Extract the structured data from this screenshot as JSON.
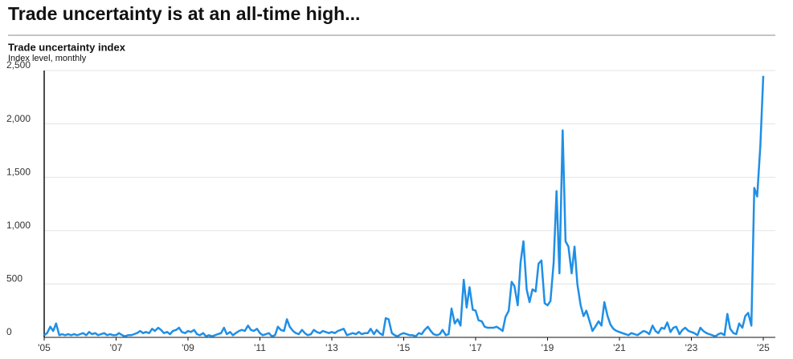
{
  "chart_data": {
    "type": "line",
    "title": "Trade uncertainty is at an all-time high...",
    "subtitle": "Trade uncertainty index",
    "y_label": "Index level, monthly",
    "xlim": [
      2005,
      2025
    ],
    "xticks": [
      {
        "value": 2005,
        "label": "'05"
      },
      {
        "value": 2007,
        "label": "'07"
      },
      {
        "value": 2009,
        "label": "'09"
      },
      {
        "value": 2011,
        "label": "'11"
      },
      {
        "value": 2013,
        "label": "'13"
      },
      {
        "value": 2015,
        "label": "'15"
      },
      {
        "value": 2017,
        "label": "'17"
      },
      {
        "value": 2019,
        "label": "'19"
      },
      {
        "value": 2021,
        "label": "'21"
      },
      {
        "value": 2023,
        "label": "'23"
      },
      {
        "value": 2025,
        "label": "'25"
      }
    ],
    "ylim": [
      0,
      2500
    ],
    "yticks": [
      0,
      500,
      {
        "value": 1000,
        "label": "1,000"
      },
      {
        "value": 1500,
        "label": "1,500"
      },
      {
        "value": 2000,
        "label": "2,000"
      },
      {
        "value": 2500,
        "label": "2,500"
      }
    ],
    "grid": true,
    "series": [
      {
        "name": "Trade uncertainty index",
        "color": "#1f8fe6",
        "x": [
          2005,
          2005.08,
          2005.17,
          2005.25,
          2005.33,
          2005.42,
          2005.5,
          2005.58,
          2005.67,
          2005.75,
          2005.83,
          2005.92,
          2006,
          2006.08,
          2006.17,
          2006.25,
          2006.33,
          2006.42,
          2006.5,
          2006.58,
          2006.67,
          2006.75,
          2006.83,
          2006.92,
          2007,
          2007.08,
          2007.17,
          2007.25,
          2007.33,
          2007.42,
          2007.5,
          2007.58,
          2007.67,
          2007.75,
          2007.83,
          2007.92,
          2008,
          2008.08,
          2008.17,
          2008.25,
          2008.33,
          2008.42,
          2008.5,
          2008.58,
          2008.67,
          2008.75,
          2008.83,
          2008.92,
          2009,
          2009.08,
          2009.17,
          2009.25,
          2009.33,
          2009.42,
          2009.5,
          2009.58,
          2009.67,
          2009.75,
          2009.83,
          2009.92,
          2010,
          2010.08,
          2010.17,
          2010.25,
          2010.33,
          2010.42,
          2010.5,
          2010.58,
          2010.67,
          2010.75,
          2010.83,
          2010.92,
          2011,
          2011.08,
          2011.17,
          2011.25,
          2011.33,
          2011.42,
          2011.5,
          2011.58,
          2011.67,
          2011.75,
          2011.83,
          2011.92,
          2012,
          2012.08,
          2012.17,
          2012.25,
          2012.33,
          2012.42,
          2012.5,
          2012.58,
          2012.67,
          2012.75,
          2012.83,
          2012.92,
          2013,
          2013.08,
          2013.17,
          2013.25,
          2013.33,
          2013.42,
          2013.5,
          2013.58,
          2013.67,
          2013.75,
          2013.83,
          2013.92,
          2014,
          2014.08,
          2014.17,
          2014.25,
          2014.33,
          2014.42,
          2014.5,
          2014.58,
          2014.67,
          2014.75,
          2014.83,
          2014.92,
          2015,
          2015.08,
          2015.17,
          2015.25,
          2015.33,
          2015.42,
          2015.5,
          2015.58,
          2015.67,
          2015.75,
          2015.83,
          2015.92,
          2016,
          2016.08,
          2016.17,
          2016.25,
          2016.33,
          2016.42,
          2016.5,
          2016.58,
          2016.67,
          2016.75,
          2016.83,
          2016.92,
          2017,
          2017.08,
          2017.17,
          2017.25,
          2017.33,
          2017.42,
          2017.5,
          2017.58,
          2017.67,
          2017.75,
          2017.83,
          2017.92,
          2018,
          2018.08,
          2018.17,
          2018.25,
          2018.33,
          2018.42,
          2018.5,
          2018.58,
          2018.67,
          2018.75,
          2018.83,
          2018.92,
          2019,
          2019.08,
          2019.17,
          2019.25,
          2019.33,
          2019.42,
          2019.5,
          2019.58,
          2019.67,
          2019.75,
          2019.83,
          2019.92,
          2020,
          2020.08,
          2020.17,
          2020.25,
          2020.33,
          2020.42,
          2020.5,
          2020.58,
          2020.67,
          2020.75,
          2020.83,
          2020.92,
          2021,
          2021.08,
          2021.17,
          2021.25,
          2021.33,
          2021.42,
          2021.5,
          2021.58,
          2021.67,
          2021.75,
          2021.83,
          2021.92,
          2022,
          2022.08,
          2022.17,
          2022.25,
          2022.33,
          2022.42,
          2022.5,
          2022.58,
          2022.67,
          2022.75,
          2022.83,
          2022.92,
          2023,
          2023.08,
          2023.17,
          2023.25,
          2023.33,
          2023.42,
          2023.5,
          2023.58,
          2023.67,
          2023.75,
          2023.83,
          2023.92,
          2024,
          2024.08,
          2024.17,
          2024.25,
          2024.33,
          2024.42,
          2024.5,
          2024.58,
          2024.67,
          2024.75,
          2024.83,
          2024.92,
          2025
        ],
        "values": [
          20,
          40,
          100,
          60,
          130,
          20,
          30,
          20,
          30,
          20,
          30,
          20,
          30,
          40,
          20,
          50,
          30,
          40,
          20,
          30,
          40,
          20,
          30,
          20,
          20,
          40,
          20,
          10,
          20,
          20,
          30,
          40,
          60,
          40,
          50,
          40,
          80,
          60,
          90,
          70,
          40,
          50,
          30,
          60,
          70,
          90,
          50,
          40,
          60,
          50,
          70,
          30,
          20,
          40,
          10,
          20,
          10,
          20,
          30,
          40,
          90,
          30,
          50,
          20,
          40,
          60,
          70,
          60,
          110,
          70,
          60,
          80,
          40,
          20,
          30,
          40,
          10,
          20,
          100,
          70,
          60,
          170,
          100,
          60,
          40,
          30,
          70,
          40,
          20,
          30,
          70,
          50,
          40,
          60,
          50,
          40,
          50,
          40,
          60,
          70,
          80,
          20,
          30,
          40,
          30,
          50,
          30,
          40,
          40,
          80,
          30,
          70,
          40,
          20,
          180,
          170,
          40,
          20,
          10,
          30,
          40,
          30,
          20,
          20,
          10,
          40,
          30,
          70,
          100,
          60,
          30,
          20,
          30,
          70,
          20,
          30,
          270,
          130,
          170,
          110,
          540,
          280,
          470,
          260,
          250,
          160,
          150,
          100,
          90,
          90,
          90,
          100,
          80,
          60,
          190,
          250,
          520,
          480,
          300,
          700,
          900,
          450,
          330,
          450,
          430,
          690,
          720,
          320,
          300,
          340,
          700,
          1370,
          600,
          1940,
          900,
          850,
          600,
          850,
          500,
          300,
          200,
          250,
          150,
          60,
          100,
          150,
          110,
          330,
          200,
          120,
          80,
          60,
          50,
          40,
          30,
          20,
          40,
          30,
          20,
          40,
          60,
          50,
          30,
          110,
          60,
          40,
          90,
          80,
          140,
          50,
          90,
          100,
          30,
          70,
          90,
          60,
          50,
          40,
          20,
          90,
          60,
          40,
          30,
          20,
          10,
          30,
          40,
          20,
          220,
          80,
          40,
          30,
          130,
          90,
          200,
          230,
          110,
          1400,
          1320,
          1800,
          2450
        ]
      }
    ]
  }
}
